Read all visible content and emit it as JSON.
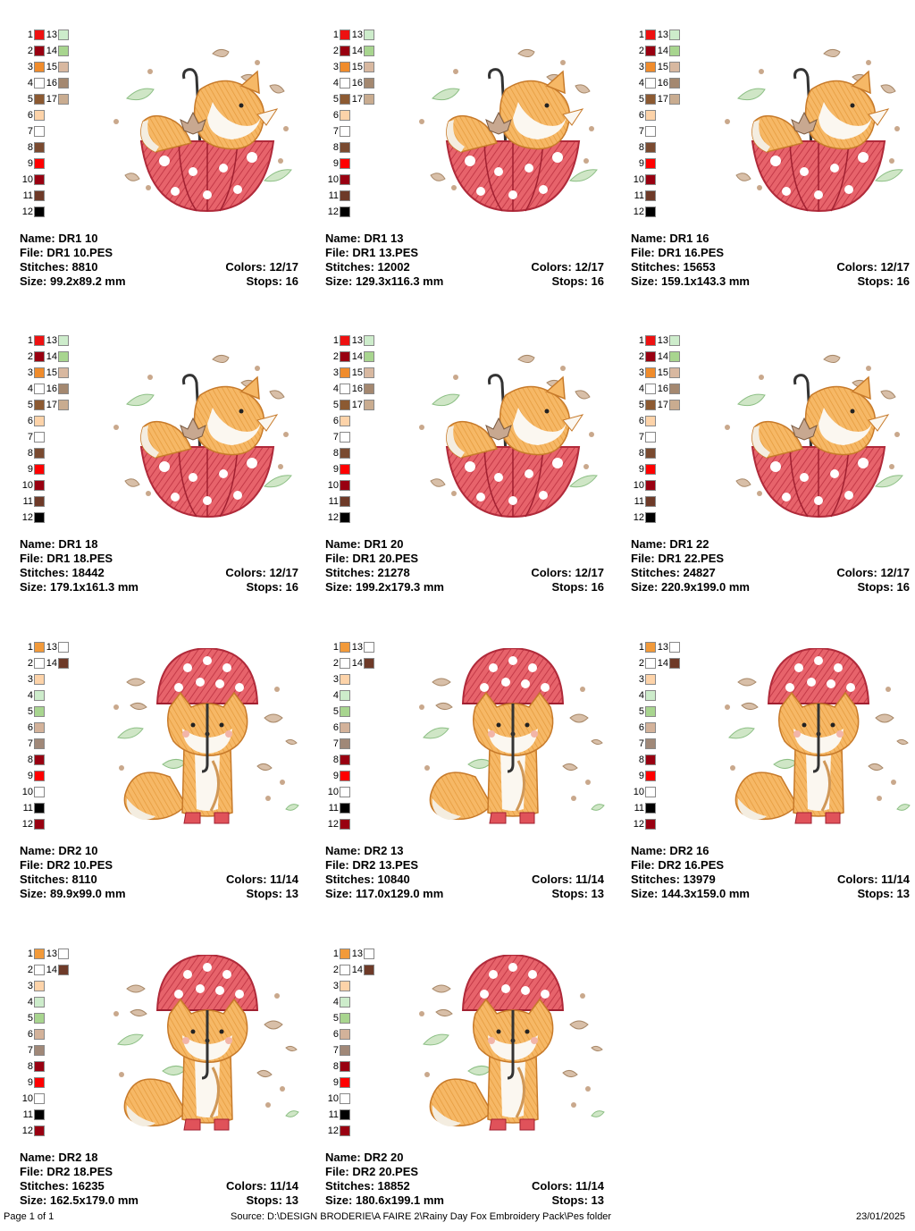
{
  "palettes": {
    "A": [
      "#ee1111",
      "#990011",
      "#f08c2c",
      "#ffffff",
      "#8c5a32",
      "#fdd3a9",
      "#ffffff",
      "#7a4a30",
      "#ff0000",
      "#990011",
      "#6e3a28",
      "#000000",
      "#cdeccb",
      "#a8d58f",
      "#d8b8a0",
      "#a48870",
      "#c9ac90"
    ],
    "B": [
      "#f29a3a",
      "#ffffff",
      "#fdd3a9",
      "#cdeccb",
      "#a8d58f",
      "#d3b29a",
      "#a08878",
      "#990011",
      "#ff0000",
      "#ffffff",
      "#000000",
      "#990011",
      "#ffffff",
      "#6e3a28"
    ]
  },
  "labels": {
    "name": "Name:",
    "file": "File:",
    "stitches": "Stitches:",
    "size": "Size:",
    "colors": "Colors:",
    "stops": "Stops:"
  },
  "designs": [
    {
      "name": "DR1 10",
      "file": "DR1 10.PES",
      "stitches": "8810",
      "size": "99.2x89.2 mm",
      "colors": "12/17",
      "stops": "16",
      "design": 1,
      "palette": "A"
    },
    {
      "name": "DR1 13",
      "file": "DR1 13.PES",
      "stitches": "12002",
      "size": "129.3x116.3 mm",
      "colors": "12/17",
      "stops": "16",
      "design": 1,
      "palette": "A"
    },
    {
      "name": "DR1 16",
      "file": "DR1 16.PES",
      "stitches": "15653",
      "size": "159.1x143.3 mm",
      "colors": "12/17",
      "stops": "16",
      "design": 1,
      "palette": "A"
    },
    {
      "name": "DR1 18",
      "file": "DR1 18.PES",
      "stitches": "18442",
      "size": "179.1x161.3 mm",
      "colors": "12/17",
      "stops": "16",
      "design": 1,
      "palette": "A"
    },
    {
      "name": "DR1 20",
      "file": "DR1 20.PES",
      "stitches": "21278",
      "size": "199.2x179.3 mm",
      "colors": "12/17",
      "stops": "16",
      "design": 1,
      "palette": "A"
    },
    {
      "name": "DR1 22",
      "file": "DR1 22.PES",
      "stitches": "24827",
      "size": "220.9x199.0 mm",
      "colors": "12/17",
      "stops": "16",
      "design": 1,
      "palette": "A"
    },
    {
      "name": "DR2 10",
      "file": "DR2 10.PES",
      "stitches": "8110",
      "size": "89.9x99.0 mm",
      "colors": "11/14",
      "stops": "13",
      "design": 2,
      "palette": "B"
    },
    {
      "name": "DR2 13",
      "file": "DR2 13.PES",
      "stitches": "10840",
      "size": "117.0x129.0 mm",
      "colors": "11/14",
      "stops": "13",
      "design": 2,
      "palette": "B"
    },
    {
      "name": "DR2 16",
      "file": "DR2 16.PES",
      "stitches": "13979",
      "size": "144.3x159.0 mm",
      "colors": "11/14",
      "stops": "13",
      "design": 2,
      "palette": "B"
    },
    {
      "name": "DR2 18",
      "file": "DR2 18.PES",
      "stitches": "16235",
      "size": "162.5x179.0 mm",
      "colors": "11/14",
      "stops": "13",
      "design": 2,
      "palette": "B"
    },
    {
      "name": "DR2 20",
      "file": "DR2 20.PES",
      "stitches": "18852",
      "size": "180.6x199.1 mm",
      "colors": "11/14",
      "stops": "13",
      "design": 2,
      "palette": "B"
    }
  ],
  "footer": {
    "page": "Page 1 of 1",
    "source": "Source: D:\\DESIGN BRODERIE\\A FAIRE 2\\Rainy Day Fox Embroidery Pack\\Pes folder",
    "date": "23/01/2025"
  }
}
